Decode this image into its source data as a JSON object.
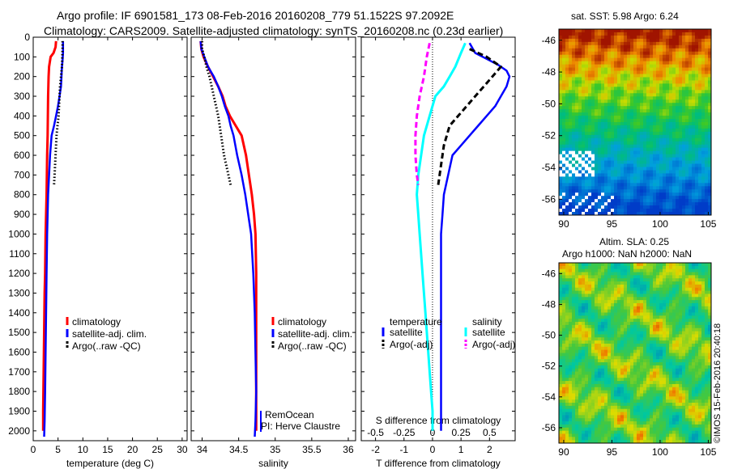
{
  "header": {
    "line1": "Argo profile: IF 6901581_173 08-Feb-2016 20160208_779 51.1522S 97.2092E",
    "line2": "Climatology: CARS2009. Satellite-adjusted climatology: synTS_20160208.nc (0.23d earlier)"
  },
  "side": {
    "sst_title": "sat. SST: 5.98 Argo: 6.24",
    "sla_title1": "Altim. SLA: 0.25",
    "sla_title2": "Argo h1000: NaN h2000: NaN",
    "stamp": "©IMOS 15-Feb-2016 20:40:18"
  },
  "colors": {
    "climatology": "#ff0000",
    "satellite": "#0000ff",
    "argo": "#000000",
    "sal_satellite": "#00ffff",
    "sal_argo": "#ff00ff"
  },
  "chart_data": [
    {
      "type": "line",
      "xlabel": "temperature (deg C)",
      "xlim": [
        0,
        31
      ],
      "xticks": [
        0,
        5,
        10,
        15,
        20,
        25,
        30
      ],
      "ylim": [
        2050,
        0
      ],
      "yticks": [
        0,
        100,
        200,
        300,
        400,
        500,
        600,
        700,
        800,
        900,
        1000,
        1100,
        1200,
        1300,
        1400,
        1500,
        1600,
        1700,
        1800,
        1900,
        2000
      ],
      "legend": [
        "climatology",
        "satellite-adj. clim.",
        "Argo(..raw -QC)"
      ],
      "series": [
        {
          "name": "climatology",
          "style": "red",
          "x": [
            4.6,
            4.5,
            4.1,
            3.5,
            3.2,
            3.1,
            3.0,
            2.95,
            2.9,
            2.8,
            2.7,
            2.6,
            2.5,
            2.4,
            2.3,
            2.25,
            2.2,
            2.15,
            2.1,
            2.05,
            2.0,
            2.0
          ],
          "y": [
            20,
            50,
            80,
            100,
            150,
            200,
            300,
            400,
            500,
            600,
            800,
            900,
            1000,
            1200,
            1300,
            1400,
            1500,
            1600,
            1700,
            1800,
            1900,
            2000
          ]
        },
        {
          "name": "satellite-adj. clim.",
          "style": "blue",
          "x": [
            6.0,
            6.0,
            5.9,
            5.8,
            5.7,
            5.6,
            5.3,
            5.0,
            4.6,
            4.2,
            3.7,
            3.4,
            3.2,
            3.0,
            2.9,
            2.8,
            2.7,
            2.6,
            2.5,
            2.4,
            2.3,
            2.2
          ],
          "y": [
            20,
            80,
            120,
            150,
            200,
            250,
            300,
            350,
            400,
            450,
            500,
            600,
            700,
            800,
            900,
            1000,
            1200,
            1400,
            1600,
            1800,
            1950,
            2030
          ]
        },
        {
          "name": "Argo(..raw -QC)",
          "style": "black-dots",
          "x": [
            5.9,
            5.9,
            5.85,
            5.8,
            5.6,
            5.4,
            5.3,
            5.2,
            5.1,
            4.9,
            4.7,
            4.6,
            4.5,
            4.4,
            4.3,
            4.2
          ],
          "y": [
            20,
            60,
            100,
            150,
            200,
            250,
            300,
            350,
            400,
            450,
            500,
            550,
            600,
            650,
            700,
            750
          ]
        }
      ]
    },
    {
      "type": "line",
      "xlabel": "salinity",
      "xlim": [
        33.85,
        36.1
      ],
      "xticks": [
        34,
        34.5,
        35,
        35.5,
        36
      ],
      "ylim": [
        2050,
        0
      ],
      "legend": [
        "climatology",
        "satellite-adj. clim.",
        "Argo(..raw -QC)"
      ],
      "annotations": [
        "RemOcean",
        "PI: Herve Claustre"
      ],
      "series": [
        {
          "name": "climatology",
          "style": "red",
          "x": [
            33.98,
            33.99,
            34.02,
            34.08,
            34.15,
            34.22,
            34.28,
            34.32,
            34.38,
            34.46,
            34.54,
            34.6,
            34.64,
            34.68,
            34.71,
            34.73,
            34.74,
            34.74,
            34.74,
            34.74,
            34.74,
            34.74
          ],
          "y": [
            20,
            60,
            100,
            150,
            200,
            250,
            300,
            350,
            400,
            450,
            500,
            600,
            700,
            800,
            900,
            1000,
            1200,
            1400,
            1600,
            1800,
            1900,
            2000
          ]
        },
        {
          "name": "satellite-adj. clim.",
          "style": "blue",
          "x": [
            33.98,
            33.99,
            34.03,
            34.08,
            34.16,
            34.22,
            34.27,
            34.31,
            34.36,
            34.39,
            34.43,
            34.48,
            34.54,
            34.59,
            34.63,
            34.67,
            34.7,
            34.72,
            34.73,
            34.74,
            34.73,
            34.72
          ],
          "y": [
            20,
            60,
            100,
            150,
            200,
            250,
            300,
            350,
            400,
            450,
            500,
            600,
            700,
            800,
            900,
            1000,
            1200,
            1400,
            1600,
            1800,
            1950,
            2030
          ]
        },
        {
          "name": "Argo(..raw -QC)",
          "style": "black-dots",
          "x": [
            34.0,
            34.0,
            34.03,
            34.06,
            34.1,
            34.13,
            34.16,
            34.19,
            34.22,
            34.24,
            34.26,
            34.28,
            34.3,
            34.33,
            34.36,
            34.39
          ],
          "y": [
            20,
            60,
            100,
            150,
            200,
            250,
            300,
            350,
            400,
            450,
            500,
            550,
            600,
            650,
            700,
            750
          ]
        }
      ]
    },
    {
      "type": "line",
      "xlabel": "T difference from climatology",
      "title_inside": "S difference from climatology",
      "xlim": [
        -2.5,
        2.9
      ],
      "xticks": [
        -2,
        -1,
        0,
        1,
        2
      ],
      "secondary_xlim": [
        -0.625,
        0.725
      ],
      "secondary_xticks": [
        -0.5,
        -0.25,
        0,
        0.25,
        0.5
      ],
      "secondary_xticklabels": [
        "-0.5",
        "-0.25",
        "0",
        "0.25",
        "0.5"
      ],
      "ylim": [
        2050,
        0
      ],
      "legend": [
        "temperature",
        "satellite",
        "Argo(-adj)",
        "salinity",
        "satellite",
        "Argo(-adj)"
      ],
      "series": [
        {
          "name": "satellite",
          "style": "blue",
          "x": [
            1.3,
            1.5,
            1.9,
            2.3,
            2.6,
            2.7,
            2.6,
            2.4,
            2.2,
            1.9,
            1.6,
            1.3,
            1.0,
            0.7,
            0.55,
            0.4,
            0.35,
            0.3,
            0.3,
            0.3,
            0.3,
            0.3
          ],
          "y": [
            30,
            80,
            110,
            140,
            170,
            200,
            250,
            300,
            350,
            400,
            450,
            500,
            550,
            600,
            700,
            800,
            900,
            1000,
            1200,
            1500,
            1800,
            2000
          ]
        },
        {
          "name": "Argo(-adj)",
          "style": "black-dash",
          "x": [
            1.3,
            1.9,
            2.4,
            2.1,
            1.8,
            1.5,
            1.2,
            0.9,
            0.6,
            0.4,
            0.3,
            0.2
          ],
          "y": [
            60,
            100,
            150,
            200,
            250,
            300,
            350,
            400,
            450,
            550,
            650,
            750
          ]
        },
        {
          "name": "satellite",
          "style": "cyan",
          "x": [
            1.15,
            1.0,
            0.8,
            0.6,
            0.4,
            0.1,
            -0.1,
            -0.3,
            -0.4,
            -0.5,
            -0.55,
            -0.5,
            -0.45,
            -0.35,
            -0.25,
            -0.15,
            -0.05,
            0.0,
            0.0
          ],
          "y": [
            30,
            80,
            150,
            200,
            250,
            300,
            400,
            500,
            600,
            700,
            800,
            900,
            1000,
            1200,
            1400,
            1600,
            1800,
            1900,
            2000
          ]
        },
        {
          "name": "Argo(-adj)",
          "style": "magenta-dash",
          "x": [
            -0.1,
            -0.2,
            -0.3,
            -0.45,
            -0.55,
            -0.6,
            -0.6,
            -0.55,
            -0.5
          ],
          "y": [
            30,
            100,
            200,
            300,
            400,
            500,
            600,
            700,
            750
          ]
        }
      ]
    },
    {
      "type": "heatmap",
      "title": "sat. SST: 5.98 Argo: 6.24",
      "xlim": [
        89.5,
        105.3
      ],
      "xticks": [
        90,
        95,
        100,
        105
      ],
      "ylim": [
        -57,
        -45.3
      ],
      "yticks": [
        -46,
        -48,
        -50,
        -52,
        -54,
        -56
      ]
    },
    {
      "type": "heatmap",
      "title": "Altim. SLA: 0.25",
      "xlim": [
        89.5,
        105.3
      ],
      "xticks": [
        90,
        95,
        100,
        105
      ],
      "ylim": [
        -57,
        -45.3
      ],
      "yticks": [
        -46,
        -48,
        -50,
        -52,
        -54,
        -56
      ]
    }
  ]
}
